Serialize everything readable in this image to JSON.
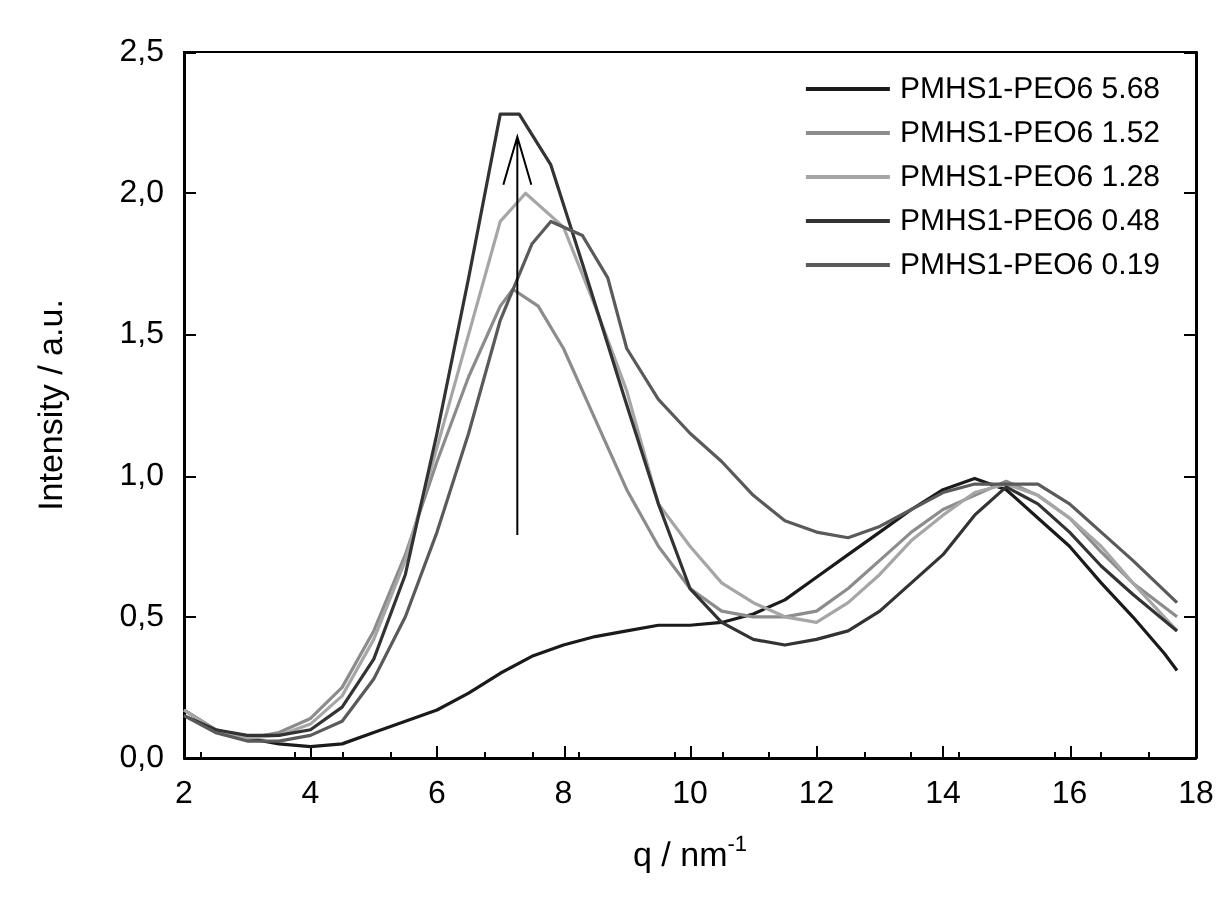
{
  "chart_data": {
    "type": "line",
    "xlabel": "q / nm$^{-1}$",
    "ylabel": "Intensity / a.u.",
    "xlim": [
      2,
      18
    ],
    "xticks": [
      2,
      4,
      6,
      8,
      10,
      12,
      14,
      16,
      18
    ],
    "ylim": [
      0,
      2.5
    ],
    "yticks": [
      {
        "value": 0,
        "label": "0,0"
      },
      {
        "value": 0.5,
        "label": "0,5"
      },
      {
        "value": 1,
        "label": "1,0"
      },
      {
        "value": 1.5,
        "label": "1,5"
      },
      {
        "value": 2,
        "label": "2,0"
      },
      {
        "value": 2.5,
        "label": "2,5"
      }
    ],
    "grid": false,
    "legend": "top right",
    "marker": "none",
    "line_style": "solid",
    "series": [
      {
        "name": "PMHS1-PEO6 5.68",
        "color": "#1a1a1a",
        "x": [
          2,
          2.5,
          3,
          3.5,
          4,
          4.5,
          5,
          5.5,
          6,
          6.5,
          7,
          7.5,
          8,
          8.5,
          9,
          9.5,
          10,
          10.5,
          11,
          11.5,
          12,
          12.5,
          13,
          13.5,
          14,
          14.5,
          15,
          15.5,
          16,
          16.5,
          17,
          17.5,
          17.7
        ],
        "values": [
          0.17,
          0.1,
          0.07,
          0.05,
          0.04,
          0.05,
          0.09,
          0.13,
          0.17,
          0.23,
          0.3,
          0.36,
          0.4,
          0.43,
          0.45,
          0.47,
          0.47,
          0.48,
          0.51,
          0.56,
          0.64,
          0.72,
          0.8,
          0.88,
          0.95,
          0.99,
          0.95,
          0.85,
          0.75,
          0.62,
          0.5,
          0.37,
          0.31
        ]
      },
      {
        "name": "PMHS1-PEO6 1.52",
        "color": "#8c8c8c",
        "x": [
          2,
          2.5,
          3,
          3.5,
          4,
          4.5,
          5,
          5.5,
          6,
          6.5,
          7,
          7.2,
          7.6,
          8,
          8.5,
          9,
          9.5,
          10,
          10.5,
          11,
          11.5,
          12,
          12.5,
          13,
          13.5,
          14,
          14.5,
          15,
          15.5,
          16,
          16.5,
          17,
          17.7
        ],
        "values": [
          0.17,
          0.1,
          0.07,
          0.09,
          0.14,
          0.25,
          0.45,
          0.72,
          1.05,
          1.35,
          1.6,
          1.66,
          1.6,
          1.45,
          1.2,
          0.95,
          0.75,
          0.6,
          0.52,
          0.5,
          0.5,
          0.52,
          0.6,
          0.7,
          0.8,
          0.88,
          0.93,
          0.98,
          0.93,
          0.85,
          0.73,
          0.62,
          0.5
        ]
      },
      {
        "name": "PMHS1-PEO6 1.28",
        "color": "#a6a6a6",
        "x": [
          2,
          2.5,
          3,
          3.5,
          4,
          4.5,
          5,
          5.5,
          6,
          6.5,
          7,
          7.4,
          8,
          8.5,
          9,
          9.5,
          10,
          10.5,
          11,
          11.5,
          12,
          12.5,
          13,
          13.5,
          14,
          14.5,
          15,
          15.5,
          16,
          16.5,
          17,
          17.7
        ],
        "values": [
          0.17,
          0.1,
          0.07,
          0.08,
          0.12,
          0.22,
          0.42,
          0.7,
          1.1,
          1.5,
          1.9,
          2.0,
          1.88,
          1.6,
          1.3,
          0.9,
          0.75,
          0.62,
          0.55,
          0.5,
          0.48,
          0.55,
          0.65,
          0.77,
          0.86,
          0.94,
          0.97,
          0.93,
          0.85,
          0.75,
          0.62,
          0.45
        ]
      },
      {
        "name": "PMHS1-PEO6 0.48",
        "color": "#333333",
        "x": [
          2,
          2.5,
          3,
          3.5,
          4,
          4.5,
          5,
          5.5,
          6,
          6.5,
          7,
          7.3,
          7.8,
          8.3,
          9,
          9.5,
          10,
          10.5,
          11,
          11.5,
          12,
          12.5,
          13,
          13.5,
          14,
          14.5,
          15,
          15.5,
          16,
          16.5,
          17,
          17.7
        ],
        "values": [
          0.15,
          0.1,
          0.08,
          0.08,
          0.1,
          0.18,
          0.35,
          0.65,
          1.15,
          1.7,
          2.28,
          2.28,
          2.1,
          1.75,
          1.25,
          0.9,
          0.6,
          0.48,
          0.42,
          0.4,
          0.42,
          0.45,
          0.52,
          0.62,
          0.72,
          0.86,
          0.96,
          0.9,
          0.8,
          0.68,
          0.58,
          0.45
        ]
      },
      {
        "name": "PMHS1-PEO6 0.19",
        "color": "#5a5a5a",
        "x": [
          2,
          2.5,
          3,
          3.5,
          4,
          4.5,
          5,
          5.5,
          6,
          6.5,
          7,
          7.5,
          7.8,
          8.3,
          8.7,
          9,
          9.5,
          10,
          10.5,
          11,
          11.5,
          12,
          12.5,
          13,
          13.5,
          14,
          14.5,
          15,
          15.5,
          16,
          16.5,
          17,
          17.7
        ],
        "values": [
          0.15,
          0.09,
          0.06,
          0.06,
          0.08,
          0.13,
          0.28,
          0.5,
          0.8,
          1.15,
          1.55,
          1.82,
          1.9,
          1.85,
          1.7,
          1.45,
          1.27,
          1.15,
          1.05,
          0.93,
          0.84,
          0.8,
          0.78,
          0.82,
          0.88,
          0.94,
          0.97,
          0.97,
          0.97,
          0.9,
          0.8,
          0.7,
          0.55
        ]
      }
    ]
  }
}
